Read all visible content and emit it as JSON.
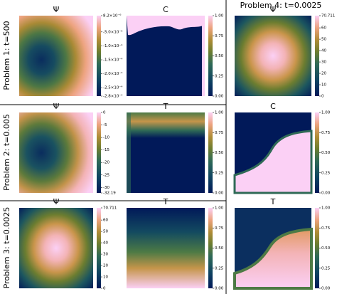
{
  "row_labels": [
    "Problem 1: t=500",
    "Problem 2: t=0.005",
    "Problem 3: t=0.0025"
  ],
  "column_title": "Problem 4: t=0.0025",
  "panels": [
    {
      "title": "Ψ",
      "colorbar": {
        "lim": [
          -0.00028,
          8.2e-06
        ],
        "ticks": [
          {
            "value": 8.2e-06,
            "label": "8.2×10⁻⁶"
          },
          {
            "value": -5e-05,
            "label": "-5.0×10⁻⁵"
          },
          {
            "value": -0.0001,
            "label": "-1.0×10⁻⁴"
          },
          {
            "value": -0.00015,
            "label": "-1.5×10⁻⁴"
          },
          {
            "value": -0.0002,
            "label": "-2.0×10⁻⁴"
          },
          {
            "value": -0.00025,
            "label": "-2.5×10⁻⁴"
          },
          {
            "value": -0.00028,
            "label": "-2.8×10⁻⁴"
          }
        ]
      }
    },
    {
      "title": "C",
      "colorbar": {
        "lim": [
          0,
          1
        ],
        "ticks": [
          {
            "value": 0,
            "label": "0.00"
          },
          {
            "value": 0.25,
            "label": "0.25"
          },
          {
            "value": 0.5,
            "label": "0.50"
          },
          {
            "value": 0.75,
            "label": "0.75"
          },
          {
            "value": 1,
            "label": "1.00"
          }
        ]
      }
    },
    {
      "title": "Ψ",
      "colorbar": {
        "lim": [
          -32.19,
          0
        ],
        "ticks": [
          0,
          -5,
          -10,
          -15,
          -20,
          -25,
          -30,
          -32.19
        ]
      }
    },
    {
      "title": "T",
      "colorbar": {
        "lim": [
          0,
          1
        ],
        "ticks": [
          {
            "value": 0,
            "label": "0.00"
          },
          {
            "value": 0.25,
            "label": "0.25"
          },
          {
            "value": 0.5,
            "label": "0.50"
          },
          {
            "value": 0.75,
            "label": "0.75"
          },
          {
            "value": 1,
            "label": "1.00"
          }
        ]
      }
    },
    {
      "title": "Ψ",
      "colorbar": {
        "lim": [
          0,
          70.711
        ],
        "ticks": [
          0,
          10,
          20,
          30,
          40,
          50,
          60,
          70.711
        ]
      }
    },
    {
      "title": "T",
      "colorbar": {
        "lim": [
          0,
          1
        ],
        "ticks": [
          {
            "value": 0,
            "label": "0.00"
          },
          {
            "value": 0.25,
            "label": "0.25"
          },
          {
            "value": 0.5,
            "label": "0.50"
          },
          {
            "value": 0.75,
            "label": "0.75"
          },
          {
            "value": 1,
            "label": "1.00"
          }
        ]
      }
    },
    {
      "title": "Ψ",
      "colorbar": {
        "lim": [
          0,
          70.711
        ],
        "ticks": [
          0,
          10,
          20,
          30,
          40,
          50,
          60,
          70.711
        ]
      }
    },
    {
      "title": "C",
      "colorbar": {
        "lim": [
          0,
          1
        ],
        "ticks": [
          {
            "value": 0,
            "label": "0.00"
          },
          {
            "value": 0.25,
            "label": "0.25"
          },
          {
            "value": 0.5,
            "label": "0.50"
          },
          {
            "value": 0.75,
            "label": "0.75"
          },
          {
            "value": 1,
            "label": "1.00"
          }
        ]
      }
    },
    {
      "title": "T",
      "colorbar": {
        "lim": [
          0,
          1
        ],
        "ticks": [
          {
            "value": 0,
            "label": "0.00"
          },
          {
            "value": 0.25,
            "label": "0.25"
          },
          {
            "value": 0.5,
            "label": "0.50"
          },
          {
            "value": 0.75,
            "label": "0.75"
          },
          {
            "value": 1,
            "label": "1.00"
          }
        ]
      }
    }
  ]
}
